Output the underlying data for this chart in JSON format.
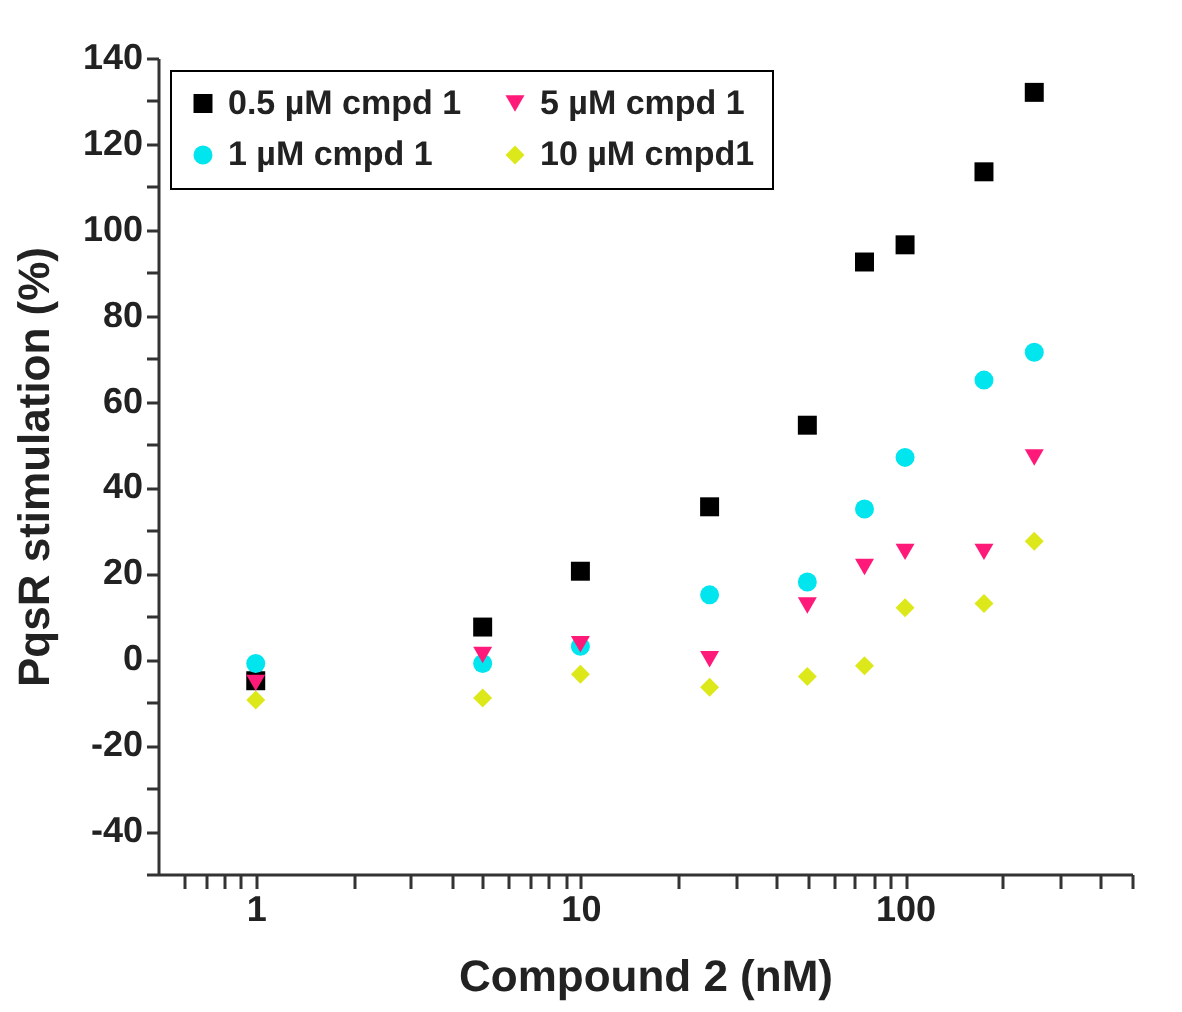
{
  "chart_data": {
    "type": "scatter",
    "xlabel": "Compound 2 (nM)",
    "ylabel": "PqsR stimulation (%)",
    "log": "x",
    "grid": false,
    "legend": "top left",
    "x": [
      1,
      5,
      10,
      25,
      50,
      75,
      100,
      175,
      250
    ],
    "xlim": [
      0.5,
      500
    ],
    "xticks": [
      {
        "value": 0.6,
        "label": null
      },
      {
        "value": 0.7,
        "label": null
      },
      {
        "value": 0.8,
        "label": null
      },
      {
        "value": 0.9,
        "label": null
      },
      1,
      {
        "value": 2,
        "label": null
      },
      {
        "value": 3,
        "label": null
      },
      {
        "value": 4,
        "label": null
      },
      {
        "value": 5,
        "label": null
      },
      {
        "value": 6,
        "label": null
      },
      {
        "value": 7,
        "label": null
      },
      {
        "value": 8,
        "label": null
      },
      {
        "value": 9,
        "label": null
      },
      10,
      {
        "value": 20,
        "label": null
      },
      {
        "value": 30,
        "label": null
      },
      {
        "value": 40,
        "label": null
      },
      {
        "value": 50,
        "label": null
      },
      {
        "value": 60,
        "label": null
      },
      {
        "value": 70,
        "label": null
      },
      {
        "value": 80,
        "label": null
      },
      {
        "value": 90,
        "label": null
      },
      100,
      {
        "value": 200,
        "label": null
      },
      {
        "value": 300,
        "label": null
      },
      {
        "value": 400,
        "label": null
      },
      {
        "value": 500,
        "label": null
      }
    ],
    "ylim": [
      -50,
      140
    ],
    "yticks": [
      {
        "value": -50,
        "label": null
      },
      -40,
      {
        "value": -30,
        "label": null
      },
      -20,
      {
        "value": -10,
        "label": null
      },
      0,
      {
        "value": 10,
        "label": null
      },
      20,
      {
        "value": 30,
        "label": null
      },
      40,
      {
        "value": 50,
        "label": null
      },
      60,
      {
        "value": 70,
        "label": null
      },
      80,
      {
        "value": 90,
        "label": null
      },
      100,
      {
        "value": 110,
        "label": null
      },
      120,
      {
        "value": 130,
        "label": null
      },
      140
    ],
    "series": [
      {
        "name": "0.5 µM cmpd 1",
        "color": "#000000",
        "marker": "square",
        "values": [
          -5,
          7.5,
          20.5,
          35.5,
          54.5,
          92.5,
          96.5,
          113.5,
          132
        ]
      },
      {
        "name": "1 µM cmpd 1",
        "color": "#00e5ee",
        "marker": "circle",
        "values": [
          -1,
          -1,
          3,
          15,
          18,
          35,
          47,
          65,
          71.5
        ]
      },
      {
        "name": "5 µM cmpd 1",
        "color": "#ff1a7a",
        "marker": "triangle",
        "values": [
          -5.5,
          1,
          3.5,
          0,
          12.5,
          21.5,
          25,
          25,
          47
        ]
      },
      {
        "name": "10 µM cmpd1",
        "color": "#dde81a",
        "marker": "diamond",
        "values": [
          -9.5,
          -9,
          -3.5,
          -6.5,
          -4,
          -1.5,
          12,
          13,
          27.5
        ]
      }
    ]
  }
}
